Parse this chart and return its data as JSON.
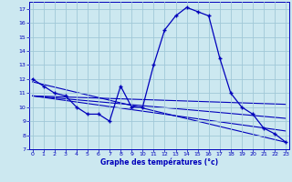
{
  "bg_color": "#cce8f0",
  "grid_color": "#a0c8d8",
  "line_color": "#0000bb",
  "xlabel": "Graphe des températures (°c)",
  "xlabel_color": "#0000bb",
  "ylim": [
    7,
    17.5
  ],
  "xlim": [
    -0.3,
    23.3
  ],
  "yticks": [
    7,
    8,
    9,
    10,
    11,
    12,
    13,
    14,
    15,
    16,
    17
  ],
  "xticks": [
    0,
    1,
    2,
    3,
    4,
    5,
    6,
    7,
    8,
    9,
    10,
    11,
    12,
    13,
    14,
    15,
    16,
    17,
    18,
    19,
    20,
    21,
    22,
    23
  ],
  "main_x": [
    0,
    1,
    2,
    3,
    4,
    5,
    6,
    7,
    8,
    9,
    10,
    11,
    12,
    13,
    14,
    15,
    16,
    17,
    18,
    19,
    20,
    21,
    22,
    23
  ],
  "main_y": [
    12.0,
    11.5,
    11.0,
    10.8,
    10.0,
    9.5,
    9.5,
    9.0,
    11.5,
    10.0,
    10.0,
    13.0,
    15.5,
    16.5,
    17.1,
    16.8,
    16.5,
    13.5,
    11.0,
    10.0,
    9.5,
    8.5,
    8.1,
    7.5
  ],
  "trend_lines": [
    {
      "x": [
        0,
        23
      ],
      "y": [
        11.8,
        7.5
      ]
    },
    {
      "x": [
        0,
        23
      ],
      "y": [
        10.8,
        10.2
      ]
    },
    {
      "x": [
        0,
        23
      ],
      "y": [
        10.8,
        9.2
      ]
    },
    {
      "x": [
        0,
        23
      ],
      "y": [
        10.8,
        8.3
      ]
    }
  ]
}
